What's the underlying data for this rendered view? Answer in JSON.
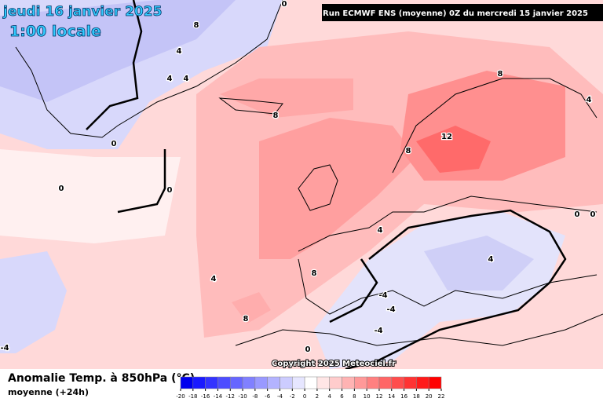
{
  "header": {
    "date": "jeudi 16 janvier 2025",
    "time": "1:00 locale",
    "run": "Run ECMWF ENS (moyenne) 0Z du mercredi 15 janvier 2025"
  },
  "footer": {
    "title": "Anomalie Temp. à 850hPa (°C)",
    "subtitle": "moyenne  (+24h)",
    "copyright": "Copyright 2025 Meteociel.fr"
  },
  "colorbar": {
    "ticks": [
      -20,
      -18,
      -16,
      -14,
      -12,
      -10,
      -8,
      -6,
      -4,
      -2,
      0,
      2,
      4,
      6,
      8,
      10,
      12,
      14,
      16,
      18,
      20,
      22
    ],
    "colors": [
      "#0000ee",
      "#1a1aff",
      "#3333ff",
      "#4d4dff",
      "#6666ff",
      "#8080ff",
      "#9999ff",
      "#b3b3ff",
      "#ccccff",
      "#e6e6ff",
      "#ffffff",
      "#ffe6e6",
      "#ffcccc",
      "#ffb3b3",
      "#ff9999",
      "#ff8080",
      "#ff6666",
      "#ff4d4d",
      "#ff3333",
      "#ff1a1a",
      "#ff0000"
    ]
  },
  "contour_labels": [
    0,
    0,
    0,
    0,
    4,
    4,
    4,
    8,
    8,
    8,
    12,
    4,
    0,
    0,
    4,
    4,
    8,
    4,
    8,
    -4,
    -4,
    -4,
    0,
    -4,
    8
  ]
}
